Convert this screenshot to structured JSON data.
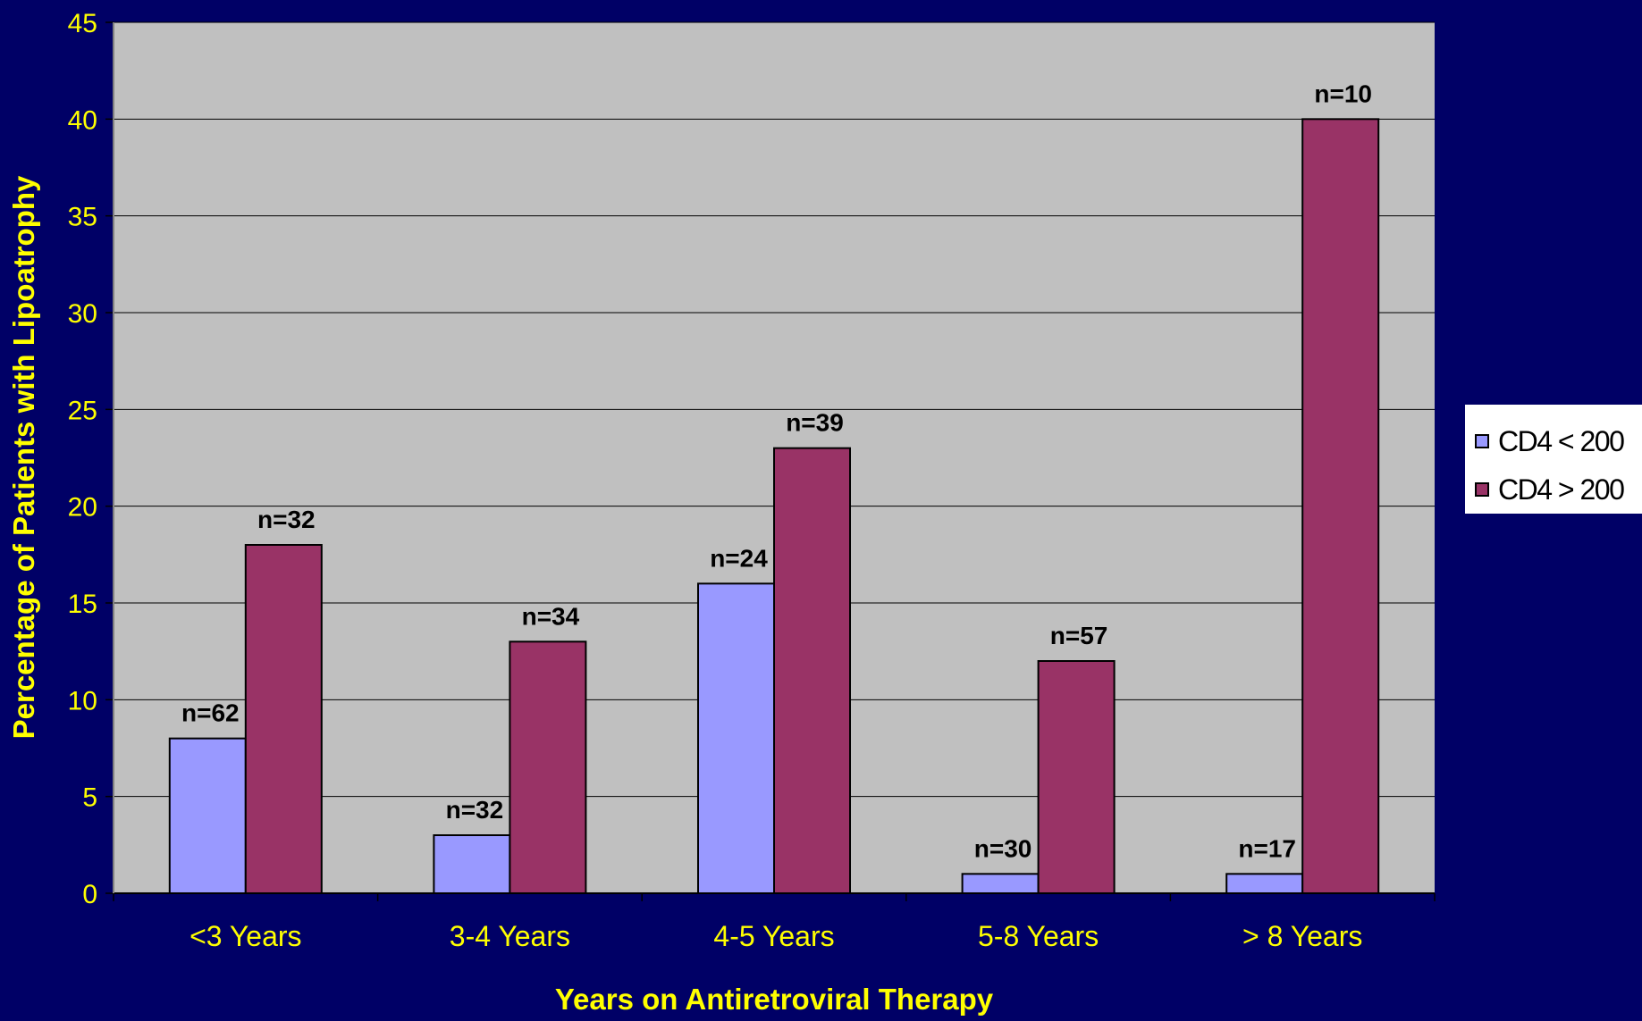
{
  "chart_data": {
    "type": "bar",
    "title": "",
    "xlabel": "Years on Antiretroviral Therapy",
    "ylabel": "Percentage of Patients with Lipoatrophy",
    "categories": [
      "<3 Years",
      "3-4 Years",
      "4-5 Years",
      "5-8 Years",
      "> 8 Years"
    ],
    "ylim": [
      0,
      45
    ],
    "yticks": [
      0,
      5,
      10,
      15,
      20,
      25,
      30,
      35,
      40,
      45
    ],
    "grid": true,
    "legend_position": "right",
    "series": [
      {
        "name": "CD4 < 200",
        "color": "#9999ff",
        "values": [
          8,
          3,
          16,
          1,
          1
        ],
        "labels": [
          "n=62",
          "n=32",
          "n=24",
          "n=30",
          "n=17"
        ]
      },
      {
        "name": "CD4 > 200",
        "color": "#993366",
        "values": [
          18,
          13,
          23,
          12,
          40
        ],
        "labels": [
          "n=32",
          "n=34",
          "n=39",
          "n=57",
          "n=10"
        ]
      }
    ],
    "colors": {
      "background": "#000066",
      "plot_area": "#c0c0c0",
      "axis_text": "#ffff00",
      "gridline": "#000000"
    }
  }
}
